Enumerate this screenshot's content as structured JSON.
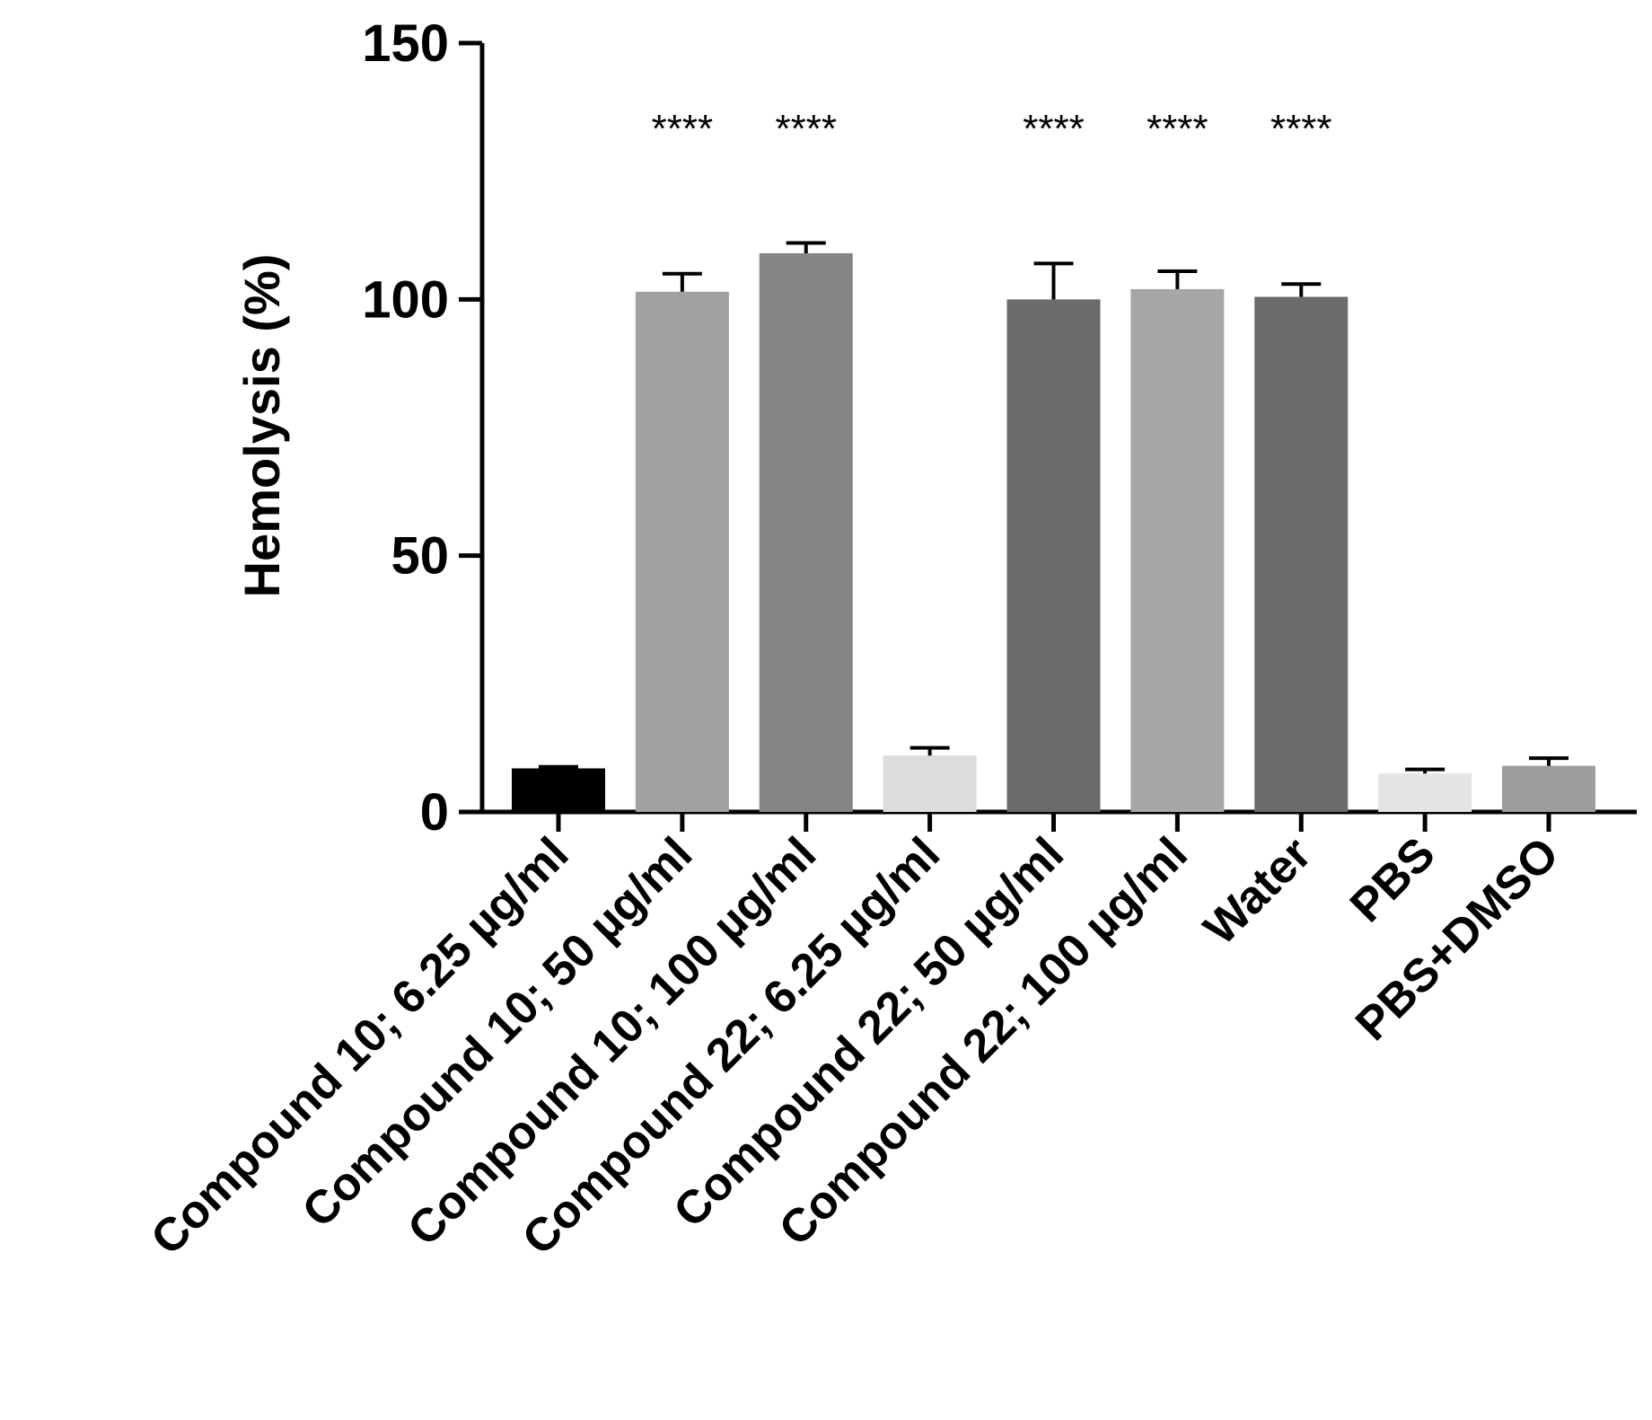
{
  "chart_data": {
    "type": "bar",
    "title": "",
    "xlabel": "",
    "ylabel": "Hemolysis (%)",
    "ylim": [
      0,
      150
    ],
    "yticks": [
      0,
      50,
      100,
      150
    ],
    "grid": false,
    "categories": [
      "Compound 10; 6.25 µg/ml",
      "Compound 10; 50 µg/ml",
      "Compound 10; 100 µg/ml",
      "Compound 22; 6.25 µg/ml",
      "Compound 22; 50 µg/ml",
      "Compound 22; 100 µg/ml",
      "Water",
      "PBS",
      "PBS+DMSO"
    ],
    "values": [
      8.5,
      101.5,
      109,
      11,
      100,
      102,
      100.5,
      7.5,
      9
    ],
    "errors": [
      0.3,
      3.5,
      2,
      1.5,
      7,
      3.5,
      2.5,
      0.8,
      1.5
    ],
    "significance": [
      "",
      "****",
      "****",
      "",
      "****",
      "****",
      "****",
      "",
      ""
    ],
    "colors": [
      "#000000",
      "#a1a1a3",
      "#858585",
      "#dcdcdc",
      "#6b6b6b",
      "#a6a6a6",
      "#6b6b6b",
      "#e4e4e4",
      "#9d9d9f"
    ]
  }
}
